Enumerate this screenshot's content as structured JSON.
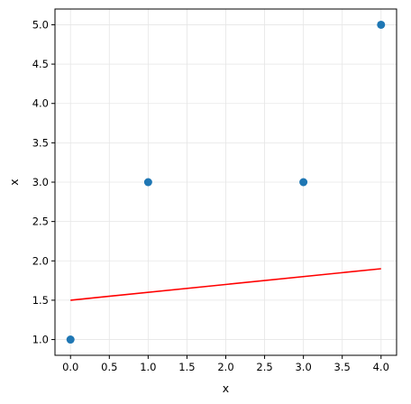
{
  "chart_data": {
    "type": "scatter",
    "title": "",
    "xlabel": "x",
    "ylabel": "x",
    "xlim": [
      -0.2,
      4.2
    ],
    "ylim": [
      0.8,
      5.2
    ],
    "grid": true,
    "xticks": [
      0.0,
      0.5,
      1.0,
      1.5,
      2.0,
      2.5,
      3.0,
      3.5,
      4.0
    ],
    "yticks": [
      1.0,
      1.5,
      2.0,
      2.5,
      3.0,
      3.5,
      4.0,
      4.5,
      5.0
    ],
    "xtick_labels": [
      "0.0",
      "0.5",
      "1.0",
      "1.5",
      "2.0",
      "2.5",
      "3.0",
      "3.5",
      "4.0"
    ],
    "ytick_labels": [
      "1.0",
      "1.5",
      "2.0",
      "2.5",
      "3.0",
      "3.5",
      "4.0",
      "4.5",
      "5.0"
    ],
    "series": [
      {
        "type": "scatter",
        "color": "#1f77b4",
        "x": [
          0,
          1,
          3,
          4
        ],
        "y": [
          1,
          3,
          3,
          5
        ]
      },
      {
        "type": "line",
        "color": "#ff0000",
        "x": [
          0,
          4
        ],
        "y": [
          1.5,
          1.9
        ]
      }
    ]
  }
}
